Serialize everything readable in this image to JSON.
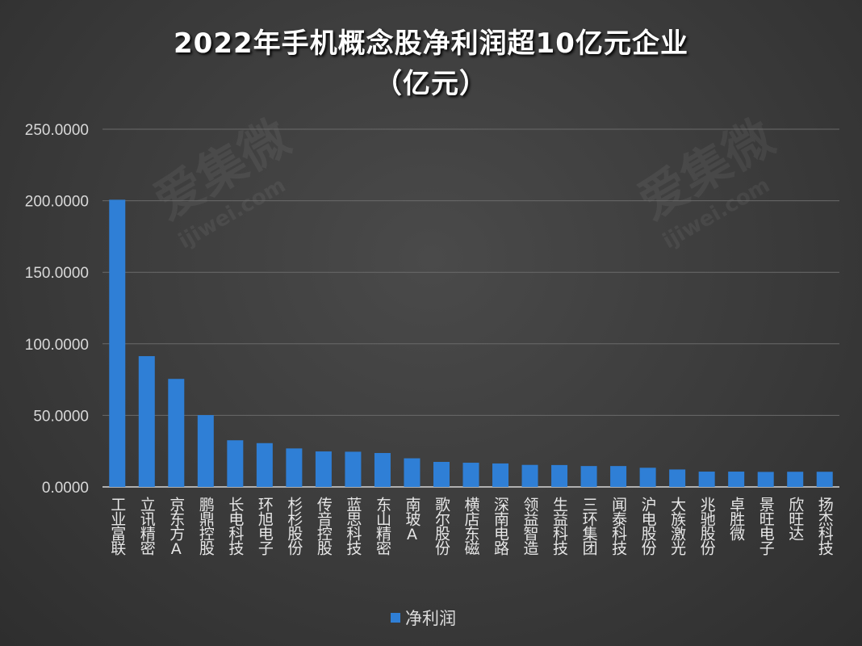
{
  "chart_data": {
    "type": "bar",
    "title": "2022年手机概念股净利润超10亿元企业",
    "subtitle": "（亿元）",
    "xlabel": "",
    "ylabel": "",
    "ylim": [
      0,
      250
    ],
    "yticks": [
      "0.0000",
      "50.0000",
      "100.0000",
      "150.0000",
      "200.0000",
      "250.0000"
    ],
    "grid": true,
    "legend_position": "bottom",
    "categories": [
      "工业富联",
      "立讯精密",
      "京东方A",
      "鹏鼎控股",
      "长电科技",
      "环旭电子",
      "杉杉股份",
      "传音控股",
      "蓝思科技",
      "东山精密",
      "南玻A",
      "歌尔股份",
      "横店东磁",
      "深南电路",
      "领益智造",
      "生益科技",
      "三环集团",
      "闻泰科技",
      "沪电股份",
      "大族激光",
      "兆驰股份",
      "卓胜微",
      "景旺电子",
      "欣旺达",
      "扬杰科技"
    ],
    "series": [
      {
        "name": "净利润",
        "color": "#2f7fd6",
        "values": [
          200.7,
          91.4,
          75.5,
          50.2,
          32.6,
          30.6,
          26.9,
          24.8,
          24.6,
          23.7,
          20.0,
          17.5,
          16.9,
          16.4,
          15.4,
          15.3,
          14.6,
          14.6,
          13.4,
          12.2,
          10.7,
          10.7,
          10.5,
          10.6,
          10.6
        ]
      }
    ]
  },
  "watermark": {
    "text": "爱集微",
    "url": "ijiwei.com"
  }
}
